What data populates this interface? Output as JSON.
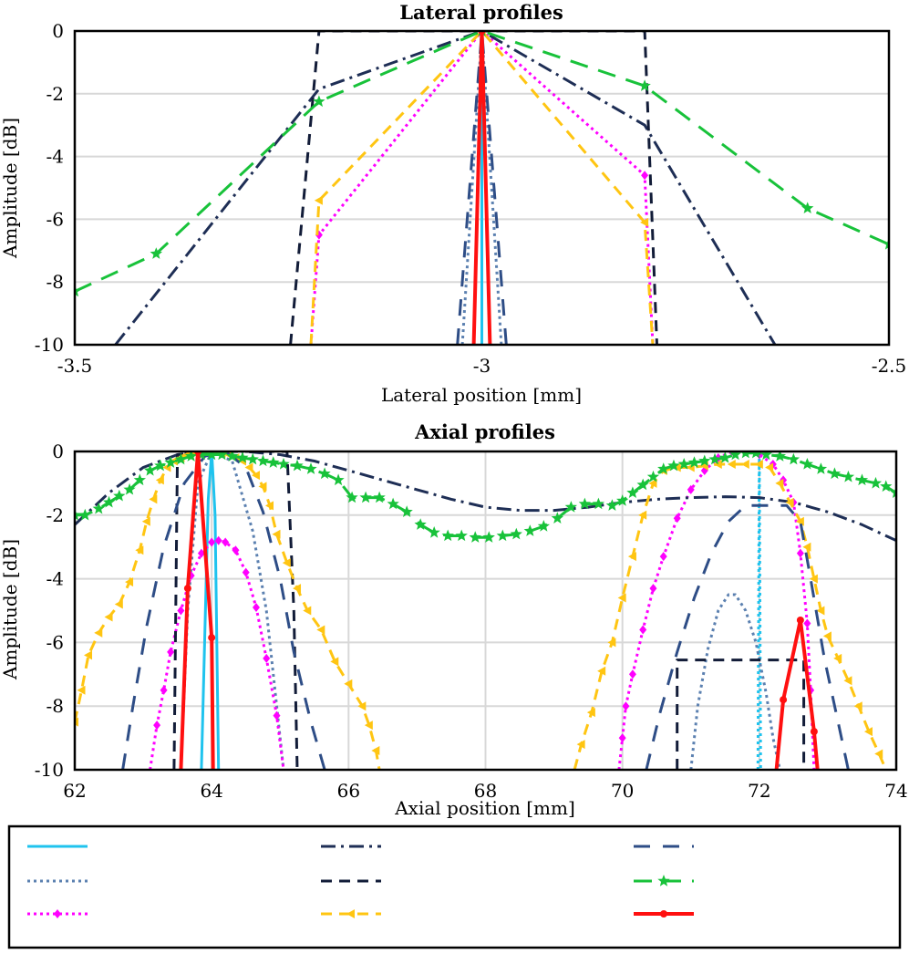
{
  "colors": {
    "cyan": "#1fc3ee",
    "steel": "#5b80b0",
    "magenta": "#ff00ff",
    "navy_dashdot": "#1e2e55",
    "navy_dash": "#121c38",
    "yellow": "#ffc512",
    "blue_dash": "#2e4d86",
    "green": "#18c23a",
    "red": "#ff1010",
    "grid": "#d8d8d8"
  },
  "chart_data": [
    {
      "type": "line",
      "title": "Lateral profiles",
      "xlabel": "Lateral position [mm]",
      "ylabel": "Amplitude [dB]",
      "xlim": [
        -3.5,
        -2.5
      ],
      "ylim": [
        -10,
        0
      ],
      "xticks": [
        -3.5,
        -3,
        -2.5
      ],
      "xtick_labels": [
        "-3.5",
        "-3",
        "-2.5"
      ],
      "yticks": [
        0,
        -2,
        -4,
        -6,
        -8,
        -10
      ],
      "ytick_labels": [
        "0",
        "-2",
        "-4",
        "-6",
        "-8",
        "-10"
      ],
      "grid": "horizontal",
      "series": [
        {
          "style": "cyan_solid",
          "x": [
            -3.0,
            -3.0,
            -3.0
          ],
          "y": [
            -10,
            0,
            -10
          ]
        },
        {
          "style": "steel_dot",
          "x": [
            -3.024,
            -3.0,
            -2.976
          ],
          "y": [
            -10,
            0,
            -10
          ]
        },
        {
          "style": "magenta_diamond",
          "x": [
            -3.21,
            -3.2,
            -3.0,
            -2.8,
            -2.79
          ],
          "y": [
            -10,
            -6.5,
            0,
            -4.6,
            -10
          ]
        },
        {
          "style": "navy_dashdot",
          "x": [
            -3.45,
            -3.2,
            -3.0,
            -2.8,
            -2.64
          ],
          "y": [
            -10,
            -1.85,
            0,
            -3.0,
            -10
          ]
        },
        {
          "style": "navy_dash",
          "x": [
            -3.235,
            -3.2,
            -3.0,
            -2.8,
            -2.785
          ],
          "y": [
            -10,
            0,
            0,
            0,
            -10
          ]
        },
        {
          "style": "yellow_triangle",
          "x": [
            -3.21,
            -3.2,
            -3.0,
            -2.8,
            -2.79
          ],
          "y": [
            -10,
            -5.4,
            0,
            -6.1,
            -10
          ]
        },
        {
          "style": "blue_dash",
          "x": [
            -3.03,
            -3.0,
            -2.97
          ],
          "y": [
            -10,
            0,
            -10
          ]
        },
        {
          "style": "green_star",
          "x": [
            -3.5,
            -3.4,
            -3.2,
            -3.0,
            -2.8,
            -2.6,
            -2.5
          ],
          "y": [
            -8.3,
            -7.1,
            -2.25,
            0,
            -1.75,
            -5.65,
            -6.8
          ]
        },
        {
          "style": "red_dot",
          "x": [
            -3.01,
            -3.0,
            -2.99
          ],
          "y": [
            -10,
            0,
            -10
          ]
        }
      ]
    },
    {
      "type": "line",
      "title": "Axial profiles",
      "xlabel": "Axial position [mm]",
      "ylabel": "Amplitude [dB]",
      "xlim": [
        62,
        74
      ],
      "ylim": [
        -10,
        0
      ],
      "xticks": [
        62,
        64,
        66,
        68,
        70,
        72,
        74
      ],
      "xtick_labels": [
        "62",
        "64",
        "66",
        "68",
        "70",
        "72",
        "74"
      ],
      "yticks": [
        0,
        -2,
        -4,
        -6,
        -8,
        -10
      ],
      "ytick_labels": [
        "0",
        "-2",
        "-4",
        "-6",
        "-8",
        "-10"
      ],
      "grid": "both",
      "series": [
        {
          "style": "cyan_solid",
          "x": [
            63.85,
            63.95,
            64.0,
            64.05,
            64.1
          ],
          "y": [
            -10,
            -1.5,
            0,
            -2.0,
            -10
          ]
        },
        {
          "style": "cyan_dot",
          "x": [
            71.98,
            72.0,
            72.02
          ],
          "y": [
            -10,
            0,
            -10
          ]
        },
        {
          "style": "steel_dot",
          "x": [
            63.55,
            63.65,
            63.8,
            64.0,
            64.3,
            64.6,
            64.8,
            64.95,
            65.05
          ],
          "y": [
            -10,
            -5.0,
            -1.0,
            0,
            -0.3,
            -2.5,
            -5.0,
            -8.0,
            -10
          ]
        },
        {
          "style": "steel_dot",
          "x": [
            71.0,
            71.1,
            71.25,
            71.4,
            71.55,
            71.65,
            71.8,
            71.95,
            72.1,
            72.2,
            72.3
          ],
          "y": [
            -10,
            -8.0,
            -6.2,
            -5.0,
            -4.5,
            -4.5,
            -5.0,
            -6.0,
            -7.6,
            -9.0,
            -10
          ]
        },
        {
          "style": "magenta_diamond",
          "x": [
            63.1,
            63.2,
            63.3,
            63.4,
            63.55,
            63.7,
            63.85,
            64.0,
            64.1,
            64.2,
            64.35,
            64.5,
            64.65,
            64.8,
            64.95,
            65.05
          ],
          "y": [
            -10,
            -8.6,
            -7.5,
            -6.3,
            -5.0,
            -3.9,
            -3.2,
            -2.85,
            -2.8,
            -2.85,
            -3.1,
            -3.8,
            -4.9,
            -6.5,
            -8.3,
            -10
          ]
        },
        {
          "style": "magenta_diamond",
          "x": [
            69.95,
            70.0,
            70.05,
            70.15,
            70.3,
            70.45,
            70.6,
            70.8,
            71.0,
            71.2,
            71.4,
            71.6,
            71.8,
            72.0,
            72.2,
            72.35,
            72.5,
            72.6,
            72.7,
            72.75,
            72.8
          ],
          "y": [
            -10,
            -9.0,
            -8.0,
            -7.0,
            -5.6,
            -4.3,
            -3.3,
            -2.1,
            -1.2,
            -0.6,
            -0.2,
            0,
            0,
            -0.1,
            -0.4,
            -0.9,
            -1.6,
            -3.2,
            -5.4,
            -7.5,
            -10
          ]
        },
        {
          "style": "navy_dashdot",
          "x": [
            62.0,
            62.5,
            63.0,
            63.5,
            64.0,
            64.5,
            65.0,
            65.5,
            66.0,
            66.5,
            67.0,
            67.5,
            68.0,
            68.5,
            69.0,
            69.5,
            70.0,
            70.5,
            71.0,
            71.5,
            72.0,
            72.5,
            73.0,
            73.5,
            74.0
          ],
          "y": [
            -2.3,
            -1.3,
            -0.5,
            -0.1,
            0,
            0,
            -0.1,
            -0.3,
            -0.6,
            -0.9,
            -1.2,
            -1.5,
            -1.75,
            -1.85,
            -1.85,
            -1.75,
            -1.6,
            -1.5,
            -1.45,
            -1.42,
            -1.45,
            -1.6,
            -1.9,
            -2.3,
            -2.8
          ]
        },
        {
          "style": "navy_dash",
          "x": [
            63.45,
            63.5,
            64.0,
            65.1,
            65.2,
            65.25
          ],
          "y": [
            -10,
            -0.1,
            0,
            0,
            -5.0,
            -10
          ]
        },
        {
          "style": "navy_dash",
          "x": [
            70.8,
            70.8,
            72.65,
            72.65
          ],
          "y": [
            -10,
            -6.55,
            -6.55,
            -10
          ]
        },
        {
          "style": "yellow_triangle",
          "x": [
            62.0,
            62.1,
            62.2,
            62.35,
            62.5,
            62.65,
            62.8,
            62.95,
            63.05,
            63.15,
            63.25,
            63.35,
            63.45,
            63.55,
            63.65,
            63.75,
            63.85,
            63.95,
            64.05,
            64.15,
            64.25,
            64.35,
            64.45,
            64.55,
            64.65,
            64.75,
            64.85,
            64.95,
            65.1,
            65.25,
            65.4,
            65.6,
            65.8,
            66.0,
            66.2,
            66.3,
            66.4,
            66.45
          ],
          "y": [
            -8.5,
            -7.5,
            -6.4,
            -5.7,
            -5.2,
            -4.8,
            -4.1,
            -3.1,
            -2.2,
            -1.5,
            -0.9,
            -0.5,
            -0.3,
            -0.2,
            -0.1,
            -0.05,
            -0.05,
            0,
            0,
            -0.05,
            -0.1,
            -0.2,
            -0.3,
            -0.5,
            -0.75,
            -1.1,
            -1.7,
            -2.6,
            -3.5,
            -4.3,
            -5.0,
            -5.6,
            -6.6,
            -7.3,
            -8.0,
            -8.6,
            -9.4,
            -10
          ]
        },
        {
          "style": "yellow_triangle",
          "x": [
            69.3,
            69.4,
            69.55,
            69.7,
            69.85,
            70.0,
            70.15,
            70.3,
            70.45,
            70.6,
            70.8,
            71.0,
            71.2,
            71.4,
            71.6,
            71.8,
            72.0,
            72.15,
            72.3,
            72.45,
            72.6,
            72.7,
            72.8,
            72.9,
            73.0,
            73.15,
            73.3,
            73.45,
            73.6,
            73.75,
            73.85
          ],
          "y": [
            -10,
            -9.2,
            -8.2,
            -6.9,
            -6.0,
            -4.6,
            -3.3,
            -2.0,
            -1.0,
            -0.6,
            -0.5,
            -0.5,
            -0.45,
            -0.4,
            -0.4,
            -0.4,
            -0.4,
            -0.5,
            -1.0,
            -1.6,
            -2.2,
            -3.0,
            -4.0,
            -5.0,
            -5.8,
            -6.5,
            -7.2,
            -8.0,
            -8.8,
            -9.5,
            -10
          ]
        },
        {
          "style": "blue_dash",
          "x": [
            62.7,
            62.85,
            63.05,
            63.3,
            63.6,
            63.9,
            64.2,
            64.5,
            64.75,
            65.0,
            65.2,
            65.45,
            65.65
          ],
          "y": [
            -10,
            -8.0,
            -5.5,
            -3.0,
            -1.0,
            -0.15,
            0,
            -0.5,
            -1.9,
            -4.0,
            -6.3,
            -8.5,
            -10
          ]
        },
        {
          "style": "blue_dash",
          "x": [
            70.35,
            70.55,
            70.8,
            71.05,
            71.3,
            71.55,
            71.8,
            72.1,
            72.4,
            72.6,
            72.75,
            72.95,
            73.15,
            73.3
          ],
          "y": [
            -10,
            -8.2,
            -6.3,
            -4.6,
            -3.2,
            -2.2,
            -1.7,
            -1.7,
            -1.7,
            -2.2,
            -4.0,
            -6.5,
            -8.5,
            -10
          ]
        },
        {
          "style": "green_star",
          "x": [
            62.0,
            62.15,
            62.35,
            62.5,
            62.65,
            62.8,
            62.95,
            63.1,
            63.25,
            63.4,
            63.55,
            63.7,
            63.85,
            64.0,
            64.15,
            64.3,
            64.45,
            64.6,
            64.75,
            64.9,
            65.05,
            65.25,
            65.45,
            65.65,
            65.85,
            66.05,
            66.25,
            66.45,
            66.65,
            66.85,
            67.05,
            67.25,
            67.45,
            67.65,
            67.85,
            68.05,
            68.25,
            68.45,
            68.65,
            68.85,
            69.05,
            69.25,
            69.45,
            69.65,
            69.85,
            70.0,
            70.15,
            70.3,
            70.45,
            70.6,
            70.75,
            70.9,
            71.05,
            71.2,
            71.35,
            71.5,
            71.65,
            71.8,
            71.95,
            72.1,
            72.3,
            72.5,
            72.7,
            72.9,
            73.1,
            73.3,
            73.5,
            73.7,
            73.85,
            74.0
          ],
          "y": [
            -2.0,
            -2.0,
            -1.8,
            -1.6,
            -1.4,
            -1.2,
            -0.9,
            -0.6,
            -0.45,
            -0.35,
            -0.25,
            -0.15,
            -0.1,
            -0.1,
            -0.1,
            -0.15,
            -0.2,
            -0.25,
            -0.3,
            -0.35,
            -0.4,
            -0.45,
            -0.55,
            -0.7,
            -0.9,
            -1.45,
            -1.45,
            -1.45,
            -1.65,
            -1.9,
            -2.3,
            -2.55,
            -2.65,
            -2.65,
            -2.7,
            -2.7,
            -2.65,
            -2.6,
            -2.5,
            -2.35,
            -2.1,
            -1.75,
            -1.65,
            -1.65,
            -1.7,
            -1.55,
            -1.3,
            -1.05,
            -0.8,
            -0.55,
            -0.45,
            -0.4,
            -0.35,
            -0.3,
            -0.25,
            -0.2,
            -0.1,
            -0.05,
            -0.05,
            -0.1,
            -0.15,
            -0.25,
            -0.4,
            -0.55,
            -0.7,
            -0.8,
            -0.9,
            -1.0,
            -1.1,
            -1.3
          ]
        },
        {
          "style": "red_dot",
          "x": [
            63.55,
            63.65,
            63.8,
            64.0,
            64.02
          ],
          "y": [
            -10,
            -4.3,
            0,
            -5.85,
            -10
          ]
        },
        {
          "style": "red_dot",
          "x": [
            72.25,
            72.35,
            72.6,
            72.8,
            72.85
          ],
          "y": [
            -10,
            -7.8,
            -5.3,
            -8.8,
            -10
          ]
        }
      ]
    }
  ],
  "legend": {
    "entries": [
      {
        "style": "cyan_solid",
        "label": ""
      },
      {
        "style": "navy_dashdot",
        "label": ""
      },
      {
        "style": "blue_dash",
        "label": ""
      },
      {
        "style": "steel_dot",
        "label": ""
      },
      {
        "style": "navy_dash",
        "label": ""
      },
      {
        "style": "green_star",
        "label": ""
      },
      {
        "style": "magenta_diamond",
        "label": ""
      },
      {
        "style": "yellow_triangle",
        "label": ""
      },
      {
        "style": "red_dot",
        "label": ""
      }
    ]
  }
}
